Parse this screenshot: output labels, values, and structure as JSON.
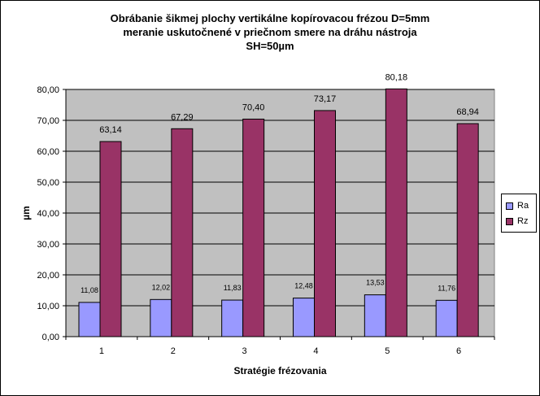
{
  "chart_data": {
    "type": "bar",
    "title_lines": [
      "Obrábanie šikmej plochy vertikálne kopírovacou frézou D=5mm",
      "meranie uskutočnené v priečnom smere na dráhu nástroja",
      "SH=50µm"
    ],
    "xlabel": "Stratégie frézovania",
    "ylabel": "µm",
    "categories": [
      "1",
      "2",
      "3",
      "4",
      "5",
      "6"
    ],
    "series": [
      {
        "name": "Ra",
        "color": "#9999ff",
        "values": [
          11.08,
          12.02,
          11.83,
          12.48,
          13.53,
          11.76
        ],
        "labels": [
          "11,08",
          "12,02",
          "11,83",
          "12,48",
          "13,53",
          "11,76"
        ]
      },
      {
        "name": "Rz",
        "color": "#993366",
        "values": [
          63.14,
          67.29,
          70.4,
          73.17,
          80.18,
          68.94
        ],
        "labels": [
          "63,14",
          "67,29",
          "70,40",
          "73,17",
          "80,18",
          "68,94"
        ]
      }
    ],
    "ylim": [
      0,
      80
    ],
    "yticks": [
      0,
      10,
      20,
      30,
      40,
      50,
      60,
      70,
      80
    ],
    "ytick_labels": [
      "0,00",
      "10,00",
      "20,00",
      "30,00",
      "40,00",
      "50,00",
      "60,00",
      "70,00",
      "80,00"
    ],
    "grid": true,
    "plot_background": "#c0c0c0",
    "legend_position": "right"
  }
}
